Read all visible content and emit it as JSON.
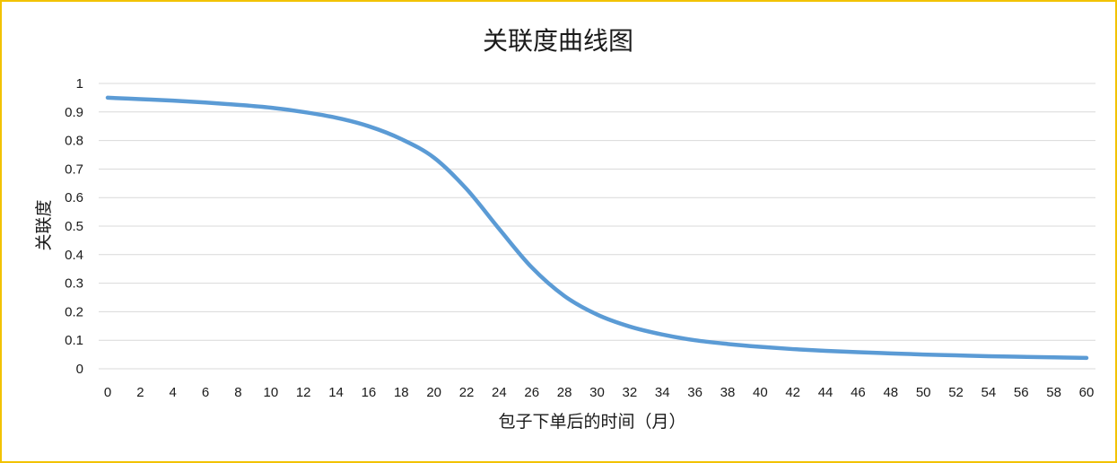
{
  "chart_data": {
    "type": "line",
    "title": "关联度曲线图",
    "xlabel": "包子下单后的时间（月）",
    "ylabel": "关联度",
    "xlim": [
      0,
      60
    ],
    "ylim": [
      0,
      1
    ],
    "xticks": [
      "0",
      "2",
      "4",
      "6",
      "8",
      "10",
      "12",
      "14",
      "16",
      "18",
      "20",
      "22",
      "24",
      "26",
      "28",
      "30",
      "32",
      "34",
      "36",
      "38",
      "40",
      "42",
      "44",
      "46",
      "48",
      "50",
      "52",
      "54",
      "56",
      "58",
      "60"
    ],
    "yticks": [
      "0",
      "0.1",
      "0.2",
      "0.3",
      "0.4",
      "0.5",
      "0.6",
      "0.7",
      "0.8",
      "0.9",
      "1"
    ],
    "grid": true,
    "line_color": "#5b9bd5",
    "grid_color": "#d9d9d9",
    "border_color": "#f2c200",
    "series": [
      {
        "x": [
          0,
          2,
          4,
          6,
          8,
          10,
          12,
          14,
          16,
          18,
          20,
          22,
          24,
          26,
          28,
          30,
          32,
          34,
          36,
          38,
          40,
          42,
          44,
          46,
          48,
          50,
          52,
          54,
          56,
          58,
          60
        ],
        "y": [
          0.95,
          0.945,
          0.94,
          0.933,
          0.925,
          0.915,
          0.9,
          0.88,
          0.85,
          0.805,
          0.74,
          0.63,
          0.49,
          0.355,
          0.255,
          0.19,
          0.148,
          0.12,
          0.1,
          0.087,
          0.077,
          0.069,
          0.063,
          0.058,
          0.054,
          0.05,
          0.047,
          0.044,
          0.042,
          0.04,
          0.038
        ]
      }
    ]
  }
}
